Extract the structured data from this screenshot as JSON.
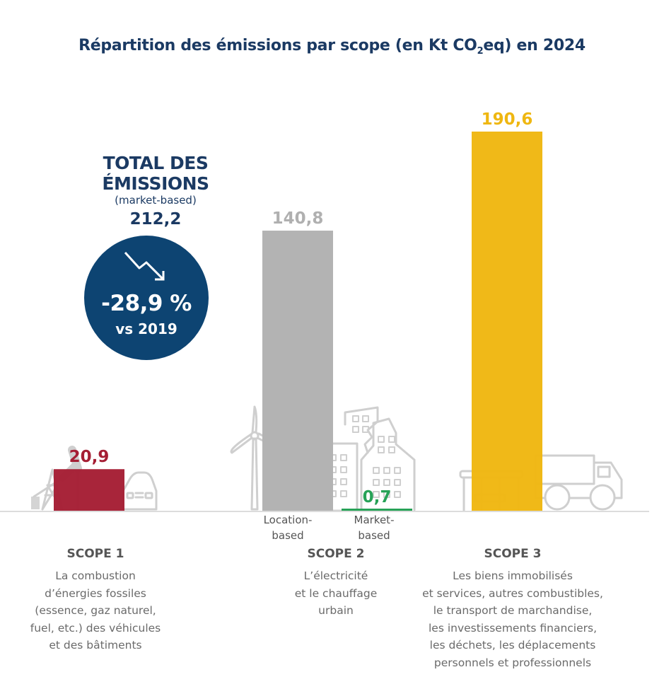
{
  "title": {
    "prefix": "Répartition des émissions par scope (en Kt CO",
    "subscript": "2",
    "suffix": "eq) en 2024"
  },
  "total": {
    "heading_line1": "TOTAL DES",
    "heading_line2": "ÉMISSIONS",
    "basis": "(market-based)",
    "value": "212,2",
    "change": "-28,9 %",
    "comparison": "vs 2019",
    "trend_icon": "trend-down-arrow-icon"
  },
  "colors": {
    "title": "#1b3a63",
    "circle": "#0d4472",
    "scope1": "#a51e34",
    "scope2_location": "#b3b3b3",
    "scope2_market": "#27a257",
    "scope3": "#efb711",
    "icons": "#cfcfcf",
    "baseline": "#dcdcdc"
  },
  "chart_data": {
    "type": "bar",
    "title": "Répartition des émissions par scope (en Kt CO2eq) en 2024",
    "xlabel": "",
    "ylabel": "Kt CO2eq",
    "ylim": [
      0,
      200
    ],
    "grid": false,
    "categories": [
      "Scope 1",
      "Scope 2 Location-based",
      "Scope 2 Market-based",
      "Scope 3"
    ],
    "values": [
      20.9,
      140.8,
      0.7,
      190.6
    ],
    "value_labels": [
      "20,9",
      "140,8",
      "0,7",
      "190,6"
    ],
    "bar_colors": [
      "#a51e34",
      "#b3b3b3",
      "#27a257",
      "#efb711"
    ],
    "sub_labels": [
      "",
      "Location-\nbased",
      "Market-\nbased",
      ""
    ],
    "total_market_based": 212.2,
    "change_vs_2019_percent": -28.9
  },
  "scopes": [
    {
      "title": "SCOPE 1",
      "description": "La combustion\nd’énergies fossiles\n(essence, gaz naturel,\nfuel, etc.) des véhicules\net des bâtiments",
      "icons": [
        "oil-pump-icon",
        "car-icon"
      ]
    },
    {
      "title": "SCOPE 2",
      "description": "L’électricité\net le chauffage\nurbain",
      "sub_labels": [
        "Location-\nbased",
        "Market-\nbased"
      ],
      "icons": [
        "wind-turbine-icon",
        "buildings-icon"
      ]
    },
    {
      "title": "SCOPE 3",
      "description": "Les biens immobilisés\net services, autres combustibles,\nle transport de marchandise,\nles investissements financiers,\nles déchets, les déplacements\npersonnels et professionnels",
      "icons": [
        "bus-shelter-icon",
        "truck-icon"
      ]
    }
  ]
}
